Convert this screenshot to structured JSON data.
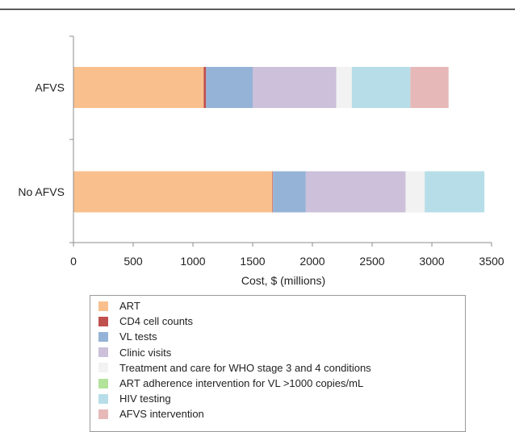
{
  "chart_data": {
    "type": "bar",
    "orientation": "horizontal",
    "stacked": true,
    "title": "",
    "xlabel": "Cost, $ (millions)",
    "ylabel": "",
    "xlim": [
      0,
      3500
    ],
    "xticks": [
      0,
      500,
      1000,
      1500,
      2000,
      2500,
      3000,
      3500
    ],
    "grid": false,
    "legend_position": "bottom",
    "categories": [
      "AFVS",
      "No AFVS"
    ],
    "series": [
      {
        "name": "ART",
        "color": "#f9c08e",
        "values": [
          1090,
          1665
        ]
      },
      {
        "name": "CD4 cell counts",
        "color": "#c0504d",
        "values": [
          20,
          5
        ]
      },
      {
        "name": "VL tests",
        "color": "#95b3d7",
        "values": [
          390,
          275
        ]
      },
      {
        "name": "Clinic visits",
        "color": "#ccc0da",
        "values": [
          700,
          835
        ]
      },
      {
        "name": "Treatment and care for WHO stage 3 and 4 conditions",
        "color": "#f2f2f2",
        "values": [
          130,
          160
        ]
      },
      {
        "name": "ART adherence intervention for VL >1000 copies/mL",
        "color": "#b3e39b",
        "values": [
          0,
          0
        ]
      },
      {
        "name": "HIV testing",
        "color": "#b7dee8",
        "values": [
          490,
          500
        ]
      },
      {
        "name": "AFVS intervention",
        "color": "#e6b9b8",
        "values": [
          320,
          0
        ]
      }
    ]
  }
}
